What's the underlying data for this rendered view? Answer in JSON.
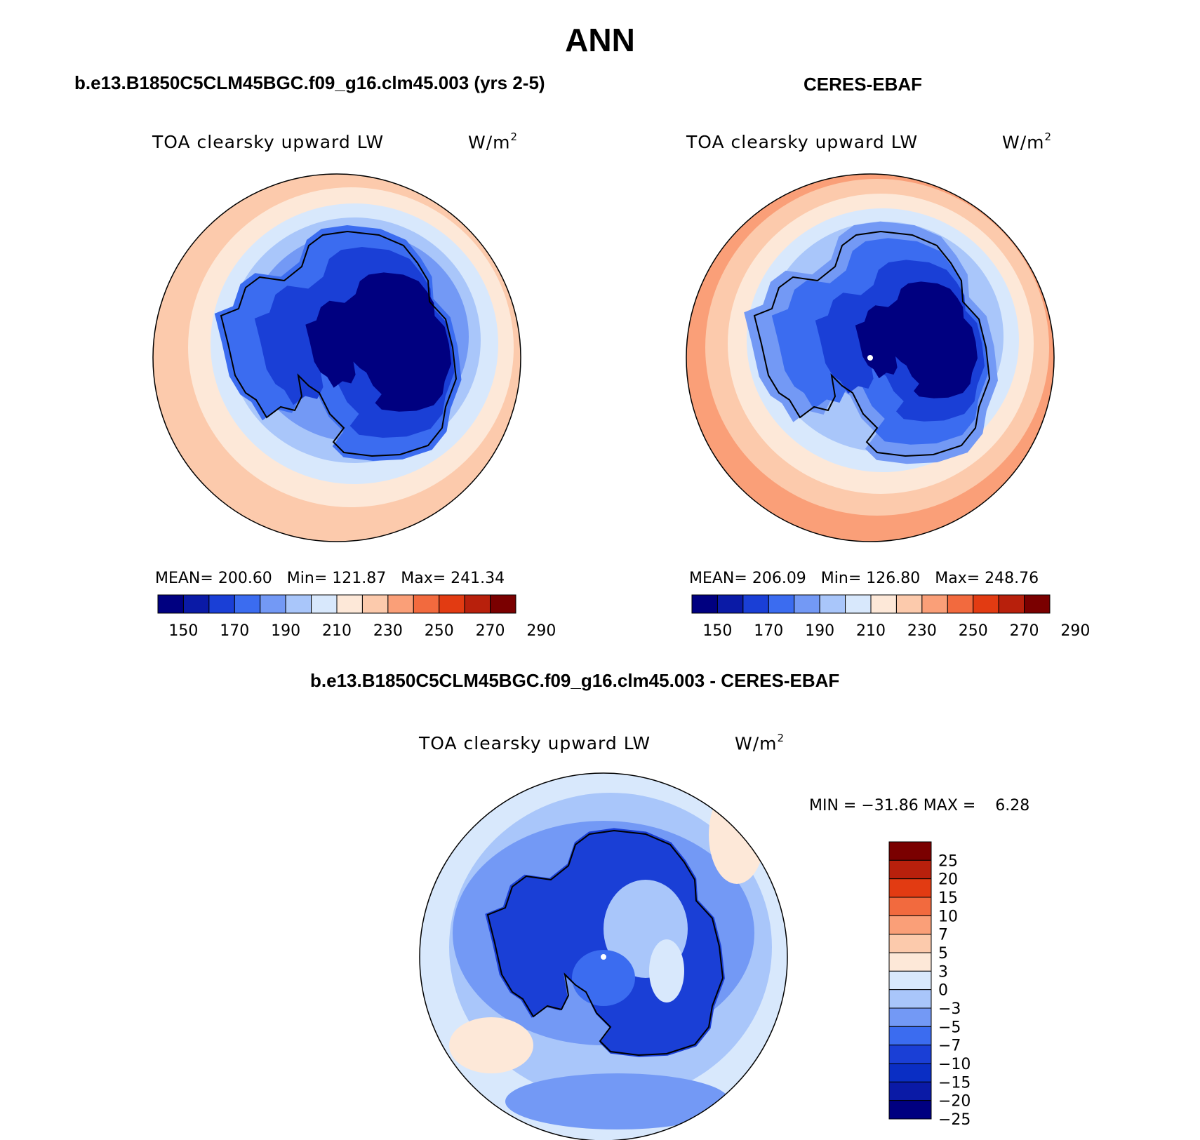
{
  "figure": {
    "title": "ANN",
    "variable": "TOA clearsky upward LW",
    "units": "W/m",
    "units_exponent": "2"
  },
  "panels": [
    {
      "id": "model",
      "title": "b.e13.B1850C5CLM45BGC.f09_g16.clm45.003 (yrs 2-5)",
      "stats": {
        "mean_label": "MEAN=",
        "mean": "200.60",
        "min_label": "Min=",
        "min": "121.87",
        "max_label": "Max=",
        "max": "241.34"
      }
    },
    {
      "id": "obs",
      "title": "CERES-EBAF",
      "stats": {
        "mean_label": "MEAN=",
        "mean": "206.09",
        "min_label": "Min=",
        "min": "126.80",
        "max_label": "Max=",
        "max": "248.76"
      }
    },
    {
      "id": "diff",
      "title": "b.e13.B1850C5CLM45BGC.f09_g16.clm45.003 - CERES-EBAF",
      "stats": {
        "min_label": "MIN =",
        "min": "−31.86",
        "max_label": "MAX =",
        "max": "6.28"
      }
    }
  ],
  "colorbar_abs": {
    "tick_labels": [
      "150",
      "170",
      "190",
      "210",
      "230",
      "250",
      "270",
      "290"
    ],
    "colors": [
      "#000080",
      "#0a1aa6",
      "#1a3fd6",
      "#3b6cf0",
      "#7399f5",
      "#a9c6fa",
      "#d8e8fc",
      "#fde8d8",
      "#fccaac",
      "#fa9f78",
      "#f26a3e",
      "#e23b12",
      "#b8200c",
      "#7a0000"
    ]
  },
  "colorbar_diff": {
    "tick_labels": [
      "25",
      "20",
      "15",
      "10",
      "7",
      "5",
      "3",
      "0",
      "−3",
      "−5",
      "−7",
      "−10",
      "−15",
      "−20",
      "−25"
    ],
    "colors": [
      "#7a0000",
      "#b8200c",
      "#e23b12",
      "#f26a3e",
      "#fa9f78",
      "#fccaac",
      "#fde8d8",
      "#d8e8fc",
      "#a9c6fa",
      "#7399f5",
      "#3b6cf0",
      "#1a3fd6",
      "#0a2ec4",
      "#0a1aa6",
      "#000080"
    ]
  },
  "map_data": {
    "projection": "south polar stereographic",
    "region": "Antarctica / Southern Ocean",
    "model_mean": 200.6,
    "obs_mean": 206.09,
    "diff_min": -31.86,
    "diff_max": 6.28
  }
}
